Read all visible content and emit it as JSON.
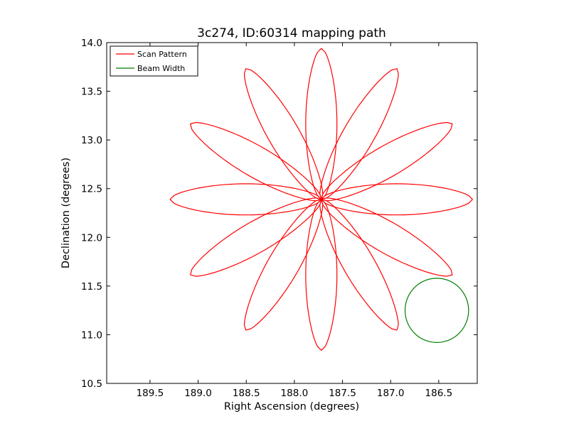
{
  "chart_data": {
    "type": "line",
    "title": "3c274, ID:60314 mapping path",
    "xlabel": "Right Ascension (degrees)",
    "ylabel": "Declination (degrees)",
    "xlim": [
      189.95,
      186.1
    ],
    "ylim": [
      10.5,
      14.0
    ],
    "x_inverted": true,
    "grid": false,
    "legend_position": "upper-left",
    "xticks": [
      189.5,
      189.0,
      188.5,
      188.0,
      187.5,
      187.0,
      186.5
    ],
    "xtick_labels": [
      "189.5",
      "189.0",
      "188.5",
      "188.0",
      "187.5",
      "187.0",
      "186.5"
    ],
    "yticks": [
      10.5,
      11.0,
      11.5,
      12.0,
      12.5,
      13.0,
      13.5,
      14.0
    ],
    "ytick_labels": [
      "10.5",
      "11.0",
      "11.5",
      "12.0",
      "12.5",
      "13.0",
      "13.5",
      "14.0"
    ],
    "series": [
      {
        "name": "Scan Pattern",
        "color": "#ff0000",
        "pattern": "rose",
        "center": [
          187.72,
          12.39
        ],
        "petals": 12,
        "petal_angle_offset_deg": 90,
        "petal_length_deg": 1.55,
        "petal_half_width_deg": 0.16
      },
      {
        "name": "Beam Width",
        "color": "#008000",
        "pattern": "circle",
        "center": [
          186.52,
          11.25
        ],
        "radius_deg": 0.33
      }
    ]
  }
}
